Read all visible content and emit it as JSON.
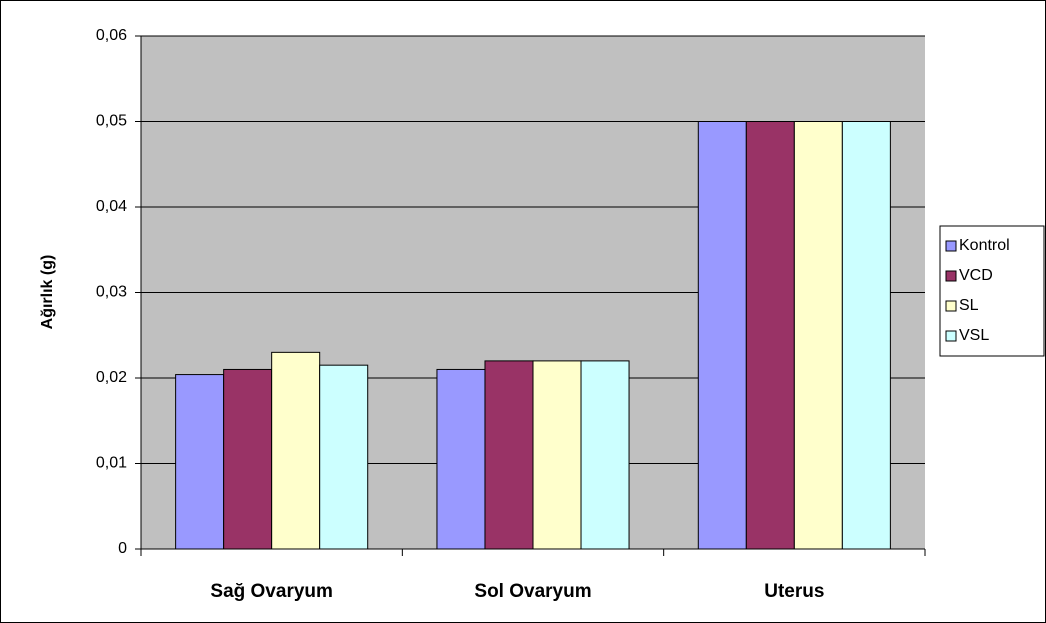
{
  "chart_data": {
    "type": "bar",
    "y_label": "Ağırlık (g)",
    "categories": [
      "Sağ Ovaryum",
      "Sol Ovaryum",
      "Uterus"
    ],
    "series": [
      {
        "name": "Kontrol",
        "color": "#9999FF",
        "values": [
          0.0204,
          0.021,
          0.05
        ]
      },
      {
        "name": "VCD",
        "color": "#993366",
        "values": [
          0.021,
          0.022,
          0.05
        ]
      },
      {
        "name": "SL",
        "color": "#FFFFCC",
        "values": [
          0.023,
          0.022,
          0.05
        ]
      },
      {
        "name": "VSL",
        "color": "#CCFFFF",
        "values": [
          0.0215,
          0.022,
          0.05
        ]
      }
    ],
    "ylim": [
      0,
      0.06
    ],
    "yticks": [
      0,
      {
        "value": 0.01,
        "label": "0,01"
      },
      {
        "value": 0.02,
        "label": "0,02"
      },
      {
        "value": 0.03,
        "label": "0,03"
      },
      {
        "value": 0.04,
        "label": "0,04"
      },
      {
        "value": 0.05,
        "label": "0,05"
      },
      {
        "value": 0.06,
        "label": "0,06"
      }
    ],
    "grid": true,
    "legend": "right",
    "plot_background": "#C0C0C0"
  }
}
